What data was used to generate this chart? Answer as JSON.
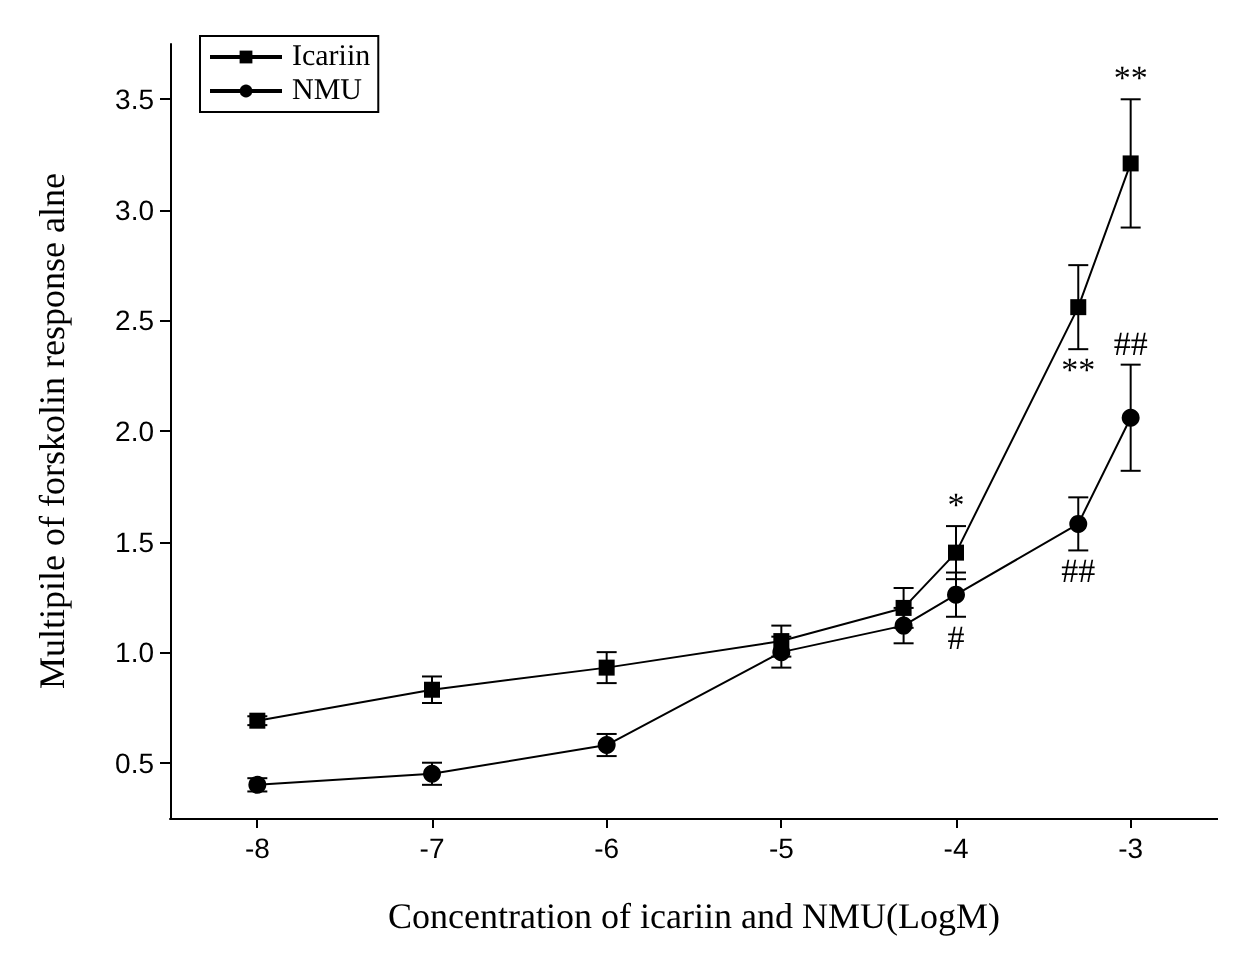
{
  "chart_data": {
    "type": "line",
    "xlabel": "Concentration of icariin and NMU(LogM)",
    "ylabel": "Multipile of forskolin response alne",
    "x": [
      -8,
      -7,
      -6,
      -5,
      -4.3,
      -4,
      -3.3,
      -3
    ],
    "series": [
      {
        "name": "Icariin",
        "color": "#000000",
        "marker": "square",
        "values": [
          0.69,
          0.83,
          0.93,
          1.05,
          1.2,
          1.45,
          2.56,
          3.21
        ],
        "errors": [
          0.02,
          0.06,
          0.07,
          0.07,
          0.09,
          0.12,
          0.19,
          0.29
        ]
      },
      {
        "name": "NMU",
        "color": "#000000",
        "marker": "circle",
        "values": [
          0.4,
          0.45,
          0.58,
          1.0,
          1.12,
          1.26,
          1.58,
          2.06
        ],
        "errors": [
          0.03,
          0.05,
          0.05,
          0.07,
          0.08,
          0.1,
          0.12,
          0.24
        ]
      }
    ],
    "xlim": [
      -8.5,
      -2.5
    ],
    "xticks": [
      -8,
      -7,
      -6,
      -5,
      -4,
      -3
    ],
    "ylim": [
      0.25,
      3.75
    ],
    "yticks": [
      0.5,
      {
        "value": 1,
        "label": "1.0"
      },
      1.5,
      {
        "value": 2,
        "label": "2.0"
      },
      2.5,
      {
        "value": 3,
        "label": "3.0"
      },
      3.5
    ],
    "grid": false,
    "legend": "top left",
    "line_style": "solid",
    "annotations": [
      {
        "text": "**",
        "x": -3,
        "y": 3.5
      },
      {
        "text": "**",
        "x": -3.3,
        "y": 2.37
      },
      {
        "text": "*",
        "x": -4,
        "y": 1.57
      },
      {
        "text": "##",
        "x": -3,
        "y": 2.3
      },
      {
        "text": "##",
        "x": -3.3,
        "y": 1.46
      },
      {
        "text": "#",
        "x": -4,
        "y": 1.16
      }
    ]
  }
}
